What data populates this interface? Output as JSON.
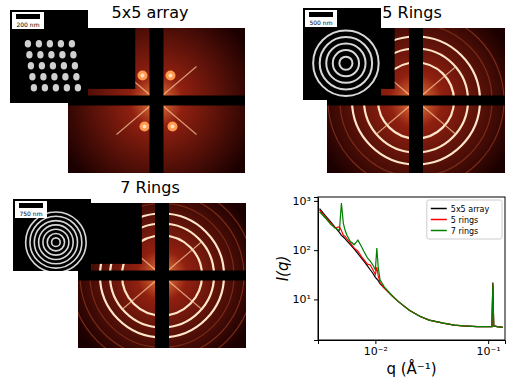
{
  "chart_data": {
    "type": "line",
    "xlabel": "q (Å⁻¹)",
    "ylabel": "I(q)",
    "log": true,
    "xlim": [
      0.0031,
      0.141
    ],
    "ylim": [
      1.5,
      1200
    ],
    "xticks": [
      {
        "value": 0.01,
        "label": "10⁻²"
      },
      {
        "value": 0.1,
        "label": "10⁻¹"
      }
    ],
    "yticks": [
      {
        "value": 10,
        "label": "10¹"
      },
      {
        "value": 100,
        "label": "10²"
      },
      {
        "value": 1000,
        "label": "10³"
      }
    ],
    "legend": "upper right",
    "x": [
      0.0032,
      0.0036,
      0.004,
      0.0044,
      0.0048,
      0.005,
      0.0052,
      0.0054,
      0.0056,
      0.006,
      0.0065,
      0.007,
      0.0075,
      0.008,
      0.0085,
      0.009,
      0.0095,
      0.01,
      0.0103,
      0.0106,
      0.011,
      0.012,
      0.014,
      0.016,
      0.02,
      0.025,
      0.03,
      0.04,
      0.05,
      0.06,
      0.08,
      0.1,
      0.108,
      0.11,
      0.112,
      0.12,
      0.135
    ],
    "series": [
      {
        "name": "5x5 array",
        "color": "#000000",
        "values": [
          700,
          500,
          380,
          290,
          230,
          200,
          185,
          170,
          155,
          130,
          105,
          85,
          70,
          58,
          48,
          40,
          34,
          28,
          26,
          24,
          21,
          17,
          12,
          9,
          6,
          4.5,
          3.8,
          3.3,
          3.0,
          2.9,
          2.8,
          2.8,
          2.8,
          22,
          2.9,
          2.8,
          2.7
        ]
      },
      {
        "name": "5 rings",
        "color": "#ff0000",
        "values": [
          650,
          470,
          360,
          280,
          300,
          250,
          200,
          190,
          170,
          140,
          110,
          95,
          75,
          62,
          52,
          50,
          40,
          32,
          45,
          30,
          22,
          17,
          12,
          9,
          6,
          4.5,
          3.8,
          3.3,
          3.0,
          2.9,
          2.8,
          2.8,
          2.8,
          20,
          2.9,
          2.8,
          2.7
        ]
      },
      {
        "name": "7 rings",
        "color": "#008000",
        "values": [
          600,
          450,
          340,
          280,
          250,
          900,
          350,
          250,
          200,
          150,
          130,
          160,
          120,
          90,
          70,
          60,
          50,
          40,
          110,
          45,
          25,
          18,
          12,
          9,
          6,
          4.5,
          3.8,
          3.3,
          3.0,
          2.9,
          2.8,
          2.8,
          2.8,
          20,
          2.9,
          2.8,
          2.7
        ]
      }
    ]
  },
  "image_panels": [
    {
      "title": "5x5 array",
      "scale_bar": "200 nm"
    },
    {
      "title": "5 Rings",
      "scale_bar": "500 nm"
    },
    {
      "title": "7 Rings",
      "scale_bar": "750 nm"
    }
  ]
}
